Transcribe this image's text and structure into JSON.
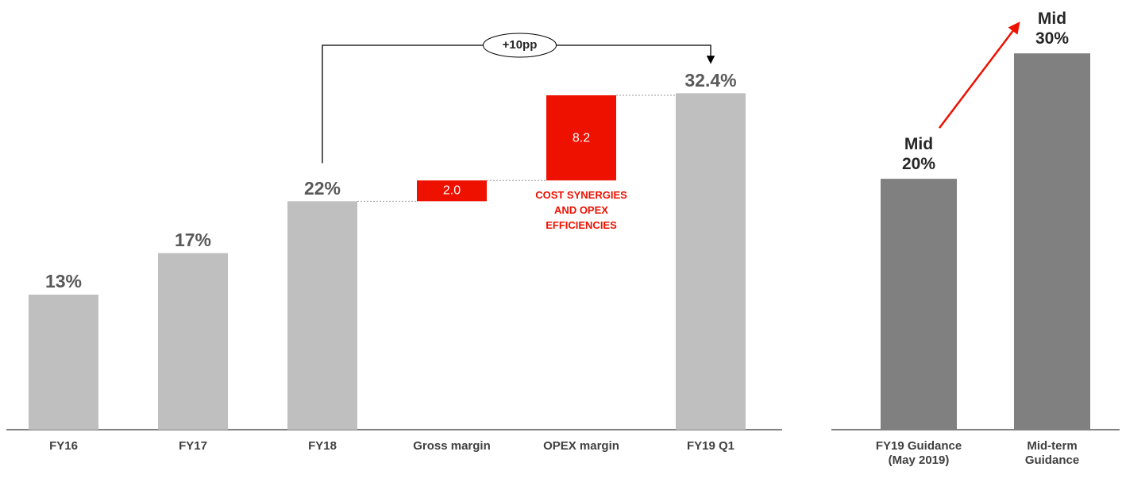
{
  "chart_data": [
    {
      "type": "waterfall",
      "categories": [
        "FY16",
        "FY17",
        "FY18",
        "Gross margin",
        "OPEX margin",
        "FY19 Q1"
      ],
      "values": [
        13,
        17,
        22,
        2.0,
        8.2,
        32.4
      ],
      "value_labels": [
        "13%",
        "17%",
        "22%",
        "2.0",
        "8.2",
        "32.4%"
      ],
      "measure": [
        "absolute",
        "absolute",
        "absolute",
        "relative",
        "relative",
        "absolute"
      ],
      "colors": {
        "absolute": "#bfbfbf",
        "relative": "#ee1100"
      },
      "ylim": [
        0,
        40
      ],
      "annotations": [
        "+10pp",
        "COST SYNERGIES AND OPEX EFFICIENCIES"
      ]
    },
    {
      "type": "bar",
      "categories": [
        "FY19 Guidance (May 2019)",
        "Mid-term Guidance"
      ],
      "values": [
        20,
        30
      ],
      "value_labels": [
        "Mid 20%",
        "Mid 30%"
      ],
      "color": "#808080",
      "ylim": [
        0,
        34
      ]
    }
  ]
}
